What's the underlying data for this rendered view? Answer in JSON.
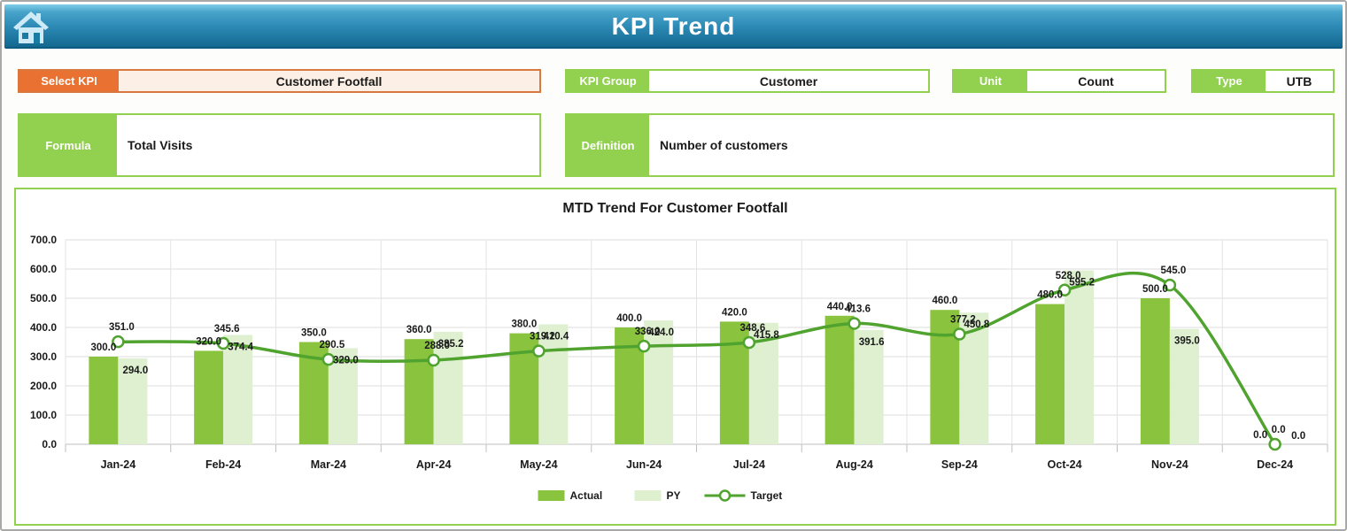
{
  "header": {
    "title": "KPI Trend",
    "home_icon": "home-icon"
  },
  "filters": {
    "select_kpi": {
      "label": "Select KPI",
      "value": "Customer Footfall"
    },
    "kpi_group": {
      "label": "KPI Group",
      "value": "Customer"
    },
    "unit": {
      "label": "Unit",
      "value": "Count"
    },
    "type": {
      "label": "Type",
      "value": "UTB"
    },
    "formula": {
      "label": "Formula",
      "value": "Total Visits"
    },
    "definition": {
      "label": "Definition",
      "value": "Number of customers"
    }
  },
  "colors": {
    "header_gradient_top": "#7ecde8",
    "header_gradient_bottom": "#13688f",
    "accent_orange": "#e97132",
    "accent_orange_field": "#fcefe5",
    "accent_green": "#92d050",
    "actual_bar": "#8ac33e",
    "py_bar": "#def0d0",
    "target_line": "#4fa32e",
    "gridline": "#dcdcdc",
    "text": "#1a1a1a"
  },
  "chart_data": {
    "type": "bar",
    "subtype": "grouped-bars-with-line",
    "title": "MTD Trend For Customer Footfall",
    "categories": [
      "Jan-24",
      "Feb-24",
      "Mar-24",
      "Apr-24",
      "May-24",
      "Jun-24",
      "Jul-24",
      "Aug-24",
      "Sep-24",
      "Oct-24",
      "Nov-24",
      "Dec-24"
    ],
    "series": [
      {
        "name": "Actual",
        "render": "bar",
        "color": "#8ac33e",
        "values": [
          300.0,
          320.0,
          350.0,
          360.0,
          380.0,
          400.0,
          420.0,
          440.0,
          460.0,
          480.0,
          500.0,
          0.0
        ]
      },
      {
        "name": "PY",
        "render": "bar",
        "color": "#def0d0",
        "values": [
          294.0,
          374.4,
          329.0,
          385.2,
          410.4,
          424.0,
          415.8,
          391.6,
          450.8,
          595.2,
          395.0,
          0.0
        ]
      },
      {
        "name": "Target",
        "render": "line",
        "color": "#4fa32e",
        "values": [
          351.0,
          345.6,
          290.5,
          288.0,
          319.2,
          336.0,
          348.6,
          413.6,
          377.2,
          528.0,
          545.0,
          0.0
        ]
      }
    ],
    "xlabel": "",
    "ylabel": "",
    "ylim": [
      0,
      700
    ],
    "ytick_step": 100,
    "ytick_format": "one-decimal",
    "grid": true,
    "legend_position": "bottom"
  }
}
